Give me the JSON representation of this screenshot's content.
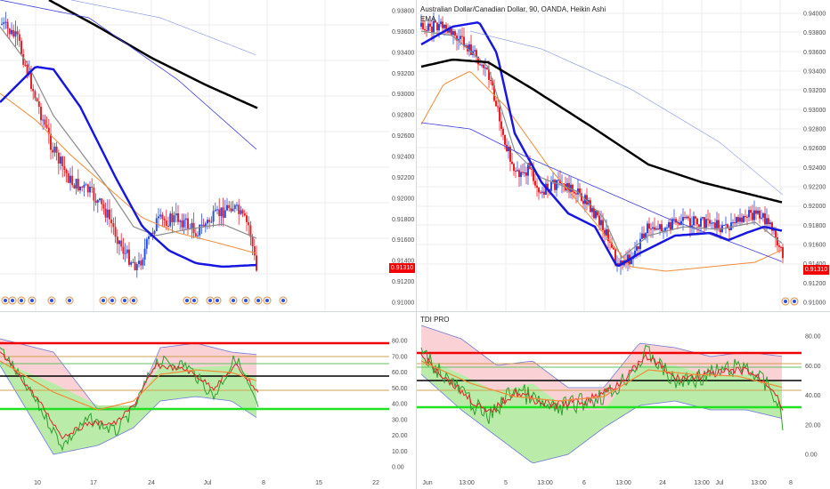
{
  "left_chart": {
    "price_axis": [
      "0.93800",
      "0.93600",
      "0.93400",
      "0.93200",
      "0.93000",
      "0.92800",
      "0.92600",
      "0.92400",
      "0.92200",
      "0.92000",
      "0.91800",
      "0.91600",
      "0.91400",
      "0.91200",
      "0.91000"
    ],
    "price_tag": "0.91310",
    "time_axis": [
      "10",
      "17",
      "24",
      "Jul",
      "8",
      "15",
      "22"
    ],
    "indicator_axis": [
      "80.00",
      "70.00",
      "60.00",
      "50.00",
      "40.00",
      "30.00",
      "20.00",
      "10.00",
      "0.00"
    ]
  },
  "right_chart": {
    "title": "Australian Dollar/Canadian Dollar, 90, OANDA, Heikin Ashi",
    "ema_label": "EMA",
    "price_axis": [
      "0.94000",
      "0.93800",
      "0.93600",
      "0.93400",
      "0.93200",
      "0.93000",
      "0.92800",
      "0.92600",
      "0.92400",
      "0.92200",
      "0.92000",
      "0.91800",
      "0.91600",
      "0.91400",
      "0.91200",
      "0.91000"
    ],
    "price_tag": "0.91310",
    "time_axis": [
      "Jun",
      "13:00",
      "5",
      "13:00",
      "6",
      "13:00",
      "24",
      "13:00",
      "Jul",
      "13:00",
      "8"
    ],
    "indicator_title": "TDI PRO",
    "indicator_axis": [
      "80.00",
      "60.00",
      "40.00",
      "20.00",
      "0.00"
    ]
  },
  "colors": {
    "bull_candle": "#2a4fe0",
    "bear_candle": "#e2232a",
    "blue_ma": "#1717e0",
    "black_ma": "#000000",
    "orange_ma": "#f08c38",
    "grey_ma": "#8c8c8c",
    "upper_band_fill": "#f9c9cd",
    "lower_band_fill": "#aee89a",
    "level_red": "#ef0000",
    "level_green": "#22e022",
    "level_black": "#000000"
  }
}
